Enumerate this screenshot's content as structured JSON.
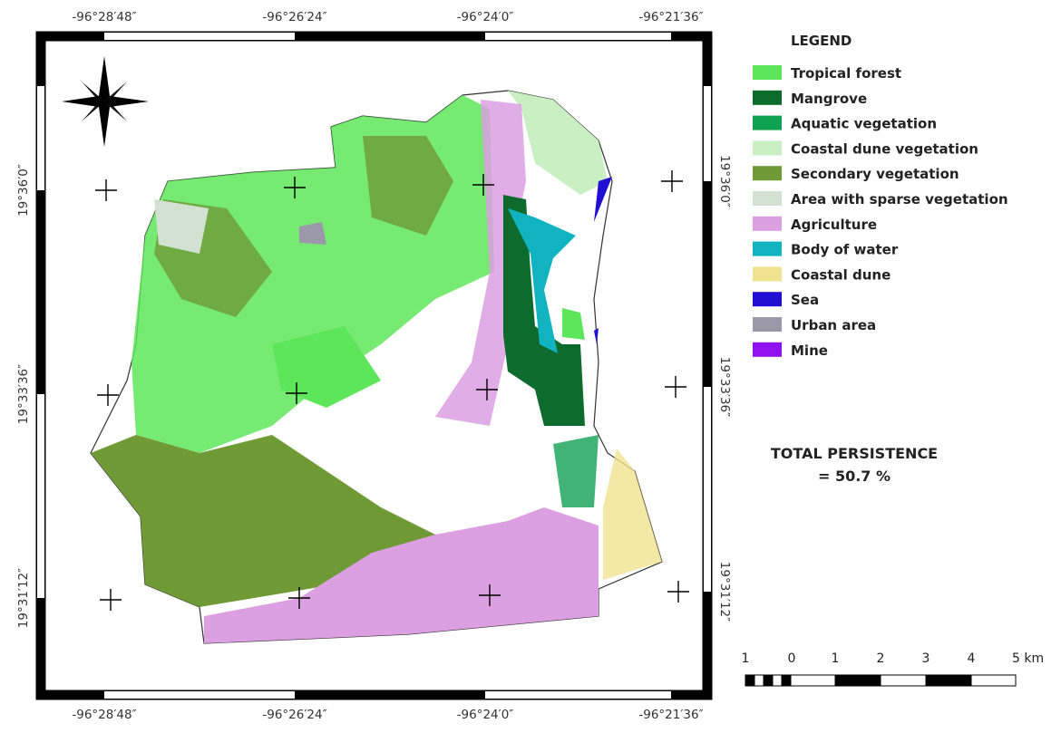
{
  "map": {
    "top_labels": [
      "-96°28′48″",
      "-96°26′24″",
      "-96°24′0″",
      "-96°21′36″"
    ],
    "bottom_labels": [
      "-96°28′48″",
      "-96°26′24″",
      "-96°24′0″",
      "-96°21′36″"
    ],
    "left_labels": [
      "19°36′0″",
      "19°33′36″",
      "19°31′12″"
    ],
    "right_labels": [
      "19°36′0″",
      "19°33′36″",
      "19°31′12″"
    ]
  },
  "legend": {
    "title": "LEGEND",
    "items": [
      {
        "label": "Tropical forest",
        "color": "#5ee65a"
      },
      {
        "label": "Mangrove",
        "color": "#0e6b2e"
      },
      {
        "label": "Aquatic vegetation",
        "color": "#11a152"
      },
      {
        "label": "Coastal dune vegetation",
        "color": "#c9efc3"
      },
      {
        "label": "Secondary vegetation",
        "color": "#6f9a36"
      },
      {
        "label": "Area with sparse vegetation",
        "color": "#d3e1d3"
      },
      {
        "label": "Agriculture",
        "color": "#dc9fe2"
      },
      {
        "label": "Body of water",
        "color": "#12b3c1"
      },
      {
        "label": "Coastal dune",
        "color": "#f0e28e"
      },
      {
        "label": "Sea",
        "color": "#2210d2"
      },
      {
        "label": "Urban area",
        "color": "#9b99a9"
      },
      {
        "label": "Mine",
        "color": "#9012f0"
      }
    ]
  },
  "persistence": {
    "label": "TOTAL PERSISTENCE",
    "value": "= 50.7 %"
  },
  "scale": {
    "labels": [
      "1",
      "0",
      "1",
      "2",
      "3",
      "4",
      "5 km"
    ]
  }
}
